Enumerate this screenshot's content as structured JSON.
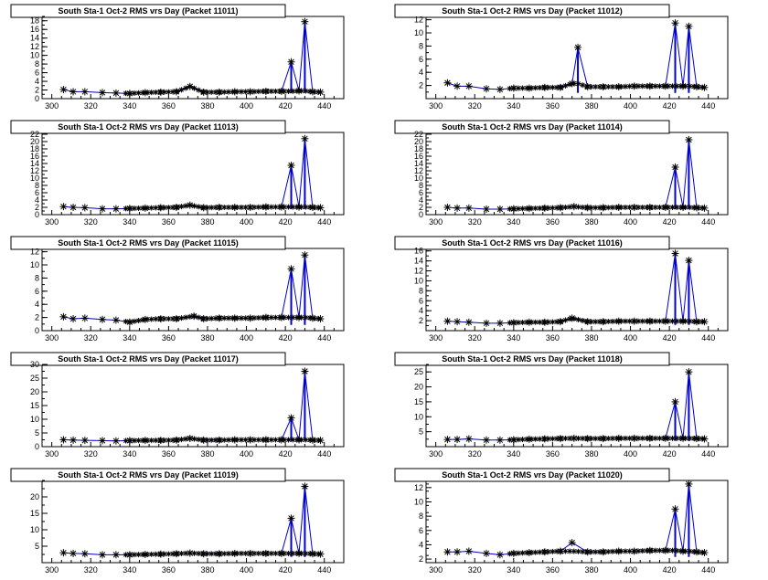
{
  "panels": [
    {
      "title": "South Sta-1 Oct-2 RMS vrs Day (Packet 11011)",
      "chart_data": {
        "type": "scatter",
        "xlim": [
          295,
          450
        ],
        "ylim": [
          0,
          19
        ],
        "xticks": [
          300,
          320,
          340,
          360,
          380,
          400,
          420,
          440
        ],
        "yticks": [
          0,
          2,
          4,
          6,
          8,
          10,
          12,
          14,
          16,
          18
        ],
        "x": [
          306,
          311,
          317,
          326,
          333,
          340,
          348,
          356,
          364,
          371,
          378,
          386,
          394,
          402,
          410,
          418,
          423,
          427,
          430,
          434,
          438
        ],
        "y": [
          2.1,
          1.6,
          1.6,
          1.4,
          1.3,
          1.2,
          1.4,
          1.5,
          1.6,
          2.8,
          1.5,
          1.5,
          1.6,
          1.6,
          1.7,
          1.7,
          8.5,
          1.8,
          17.8,
          1.6,
          1.5
        ],
        "peak_series": {
          "x": [
            423,
            430
          ],
          "y": [
            8.5,
            17.8
          ]
        }
      }
    },
    {
      "title": "South Sta-1 Oct-2 RMS vrs Day (Packet 11012)",
      "chart_data": {
        "type": "scatter",
        "xlim": [
          295,
          450
        ],
        "ylim": [
          0,
          12.5
        ],
        "xticks": [
          300,
          320,
          340,
          360,
          380,
          400,
          420,
          440
        ],
        "yticks": [
          2,
          4,
          6,
          8,
          10,
          12
        ],
        "x": [
          306,
          311,
          317,
          326,
          333,
          340,
          348,
          356,
          364,
          370,
          373,
          378,
          386,
          394,
          402,
          410,
          418,
          423,
          427,
          430,
          434,
          438
        ],
        "y": [
          2.4,
          1.9,
          1.9,
          1.5,
          1.4,
          1.6,
          1.6,
          1.7,
          1.7,
          2.3,
          7.8,
          1.8,
          1.8,
          1.8,
          1.9,
          1.9,
          1.9,
          11.5,
          1.9,
          11.0,
          1.8,
          1.7
        ],
        "peak_series": {
          "x": [
            373,
            423,
            430
          ],
          "y": [
            7.8,
            11.5,
            11.0
          ]
        }
      }
    },
    {
      "title": "South Sta-1 Oct-2 RMS vrs Day (Packet 11013)",
      "chart_data": {
        "type": "scatter",
        "xlim": [
          295,
          450
        ],
        "ylim": [
          0,
          22.5
        ],
        "xticks": [
          300,
          320,
          340,
          360,
          380,
          400,
          420,
          440
        ],
        "yticks": [
          0,
          2,
          4,
          6,
          8,
          10,
          12,
          14,
          16,
          18,
          20,
          22
        ],
        "x": [
          306,
          311,
          317,
          326,
          333,
          340,
          348,
          356,
          364,
          371,
          378,
          386,
          394,
          402,
          410,
          418,
          423,
          427,
          430,
          434,
          438
        ],
        "y": [
          2.2,
          2.0,
          1.9,
          1.6,
          1.6,
          1.7,
          1.8,
          1.9,
          2.0,
          2.6,
          1.9,
          2.0,
          2.0,
          2.0,
          2.1,
          2.1,
          13.5,
          2.1,
          20.8,
          2.0,
          1.9
        ],
        "peak_series": {
          "x": [
            423,
            430
          ],
          "y": [
            13.5,
            20.8
          ]
        }
      }
    },
    {
      "title": "South Sta-1 Oct-2 RMS vrs Day (Packet 11014)",
      "chart_data": {
        "type": "scatter",
        "xlim": [
          295,
          450
        ],
        "ylim": [
          0,
          22.5
        ],
        "xticks": [
          300,
          320,
          340,
          360,
          380,
          400,
          420,
          440
        ],
        "yticks": [
          0,
          2,
          4,
          6,
          8,
          10,
          12,
          14,
          16,
          18,
          20,
          22
        ],
        "x": [
          306,
          311,
          317,
          326,
          333,
          340,
          348,
          356,
          364,
          371,
          378,
          386,
          394,
          402,
          410,
          418,
          423,
          427,
          430,
          434,
          438
        ],
        "y": [
          2.0,
          1.8,
          1.8,
          1.5,
          1.5,
          1.6,
          1.7,
          1.8,
          1.9,
          2.2,
          1.9,
          1.9,
          2.0,
          2.0,
          2.0,
          2.0,
          13.0,
          2.0,
          20.5,
          1.9,
          1.8
        ],
        "peak_series": {
          "x": [
            423,
            430
          ],
          "y": [
            13.0,
            20.5
          ]
        }
      }
    },
    {
      "title": "South Sta-1 Oct-2 RMS vrs Day (Packet 11015)",
      "chart_data": {
        "type": "scatter",
        "xlim": [
          295,
          450
        ],
        "ylim": [
          0,
          12.5
        ],
        "xticks": [
          300,
          320,
          340,
          360,
          380,
          400,
          420,
          440
        ],
        "yticks": [
          0,
          2,
          4,
          6,
          8,
          10,
          12
        ],
        "x": [
          306,
          311,
          317,
          326,
          333,
          340,
          348,
          356,
          364,
          373,
          378,
          386,
          394,
          402,
          410,
          418,
          423,
          427,
          430,
          434,
          438
        ],
        "y": [
          2.1,
          1.8,
          1.9,
          1.7,
          1.6,
          1.3,
          1.7,
          1.8,
          1.8,
          2.2,
          1.8,
          1.9,
          1.9,
          1.9,
          2.0,
          2.0,
          9.4,
          2.0,
          11.5,
          1.9,
          1.8
        ],
        "peak_series": {
          "x": [
            423,
            430
          ],
          "y": [
            9.4,
            11.5
          ]
        }
      }
    },
    {
      "title": "South Sta-1 Oct-2 RMS vrs Day (Packet 11016)",
      "chart_data": {
        "type": "scatter",
        "xlim": [
          295,
          450
        ],
        "ylim": [
          0,
          16.5
        ],
        "xticks": [
          300,
          320,
          340,
          360,
          380,
          400,
          420,
          440
        ],
        "yticks": [
          2,
          4,
          6,
          8,
          10,
          12,
          14,
          16
        ],
        "x": [
          306,
          311,
          317,
          326,
          333,
          340,
          348,
          356,
          364,
          370,
          378,
          386,
          394,
          402,
          410,
          418,
          423,
          427,
          430,
          434,
          438
        ],
        "y": [
          1.9,
          1.8,
          1.7,
          1.5,
          1.5,
          1.6,
          1.7,
          1.7,
          1.8,
          2.5,
          1.8,
          1.8,
          1.9,
          1.9,
          1.9,
          1.9,
          15.5,
          1.9,
          14.1,
          1.8,
          1.8
        ],
        "peak_series": {
          "x": [
            423,
            430
          ],
          "y": [
            15.5,
            14.1
          ]
        }
      }
    },
    {
      "title": "South Sta-1 Oct-2 RMS vrs Day (Packet 11017)",
      "chart_data": {
        "type": "scatter",
        "xlim": [
          295,
          450
        ],
        "ylim": [
          0,
          30
        ],
        "xticks": [
          300,
          320,
          340,
          360,
          380,
          400,
          420,
          440
        ],
        "yticks": [
          0,
          5,
          10,
          15,
          20,
          25,
          30
        ],
        "x": [
          306,
          311,
          317,
          326,
          333,
          340,
          348,
          356,
          364,
          371,
          378,
          386,
          394,
          402,
          410,
          418,
          423,
          427,
          430,
          434,
          438
        ],
        "y": [
          2.5,
          2.4,
          2.3,
          2.2,
          2.1,
          2.2,
          2.3,
          2.3,
          2.4,
          3.0,
          2.4,
          2.4,
          2.5,
          2.5,
          2.5,
          2.5,
          10.5,
          2.5,
          27.5,
          2.4,
          2.3
        ],
        "peak_series": {
          "x": [
            423,
            430
          ],
          "y": [
            10.5,
            27.5
          ]
        }
      }
    },
    {
      "title": "South Sta-1 Oct-2 RMS vrs Day (Packet 11018)",
      "chart_data": {
        "type": "scatter",
        "xlim": [
          295,
          450
        ],
        "ylim": [
          0,
          27.5
        ],
        "xticks": [
          300,
          320,
          340,
          360,
          380,
          400,
          420,
          440
        ],
        "yticks": [
          5,
          10,
          15,
          20,
          25
        ],
        "x": [
          306,
          311,
          317,
          326,
          333,
          340,
          348,
          356,
          364,
          371,
          378,
          386,
          394,
          402,
          410,
          418,
          423,
          427,
          430,
          434,
          438
        ],
        "y": [
          2.4,
          2.4,
          2.6,
          2.2,
          2.2,
          2.3,
          2.5,
          2.6,
          2.7,
          2.8,
          2.7,
          2.7,
          2.8,
          2.8,
          2.8,
          2.8,
          15.0,
          2.8,
          25.0,
          2.7,
          2.6
        ],
        "peak_series": {
          "x": [
            423,
            430
          ],
          "y": [
            15.0,
            25.0
          ]
        }
      }
    },
    {
      "title": "South Sta-1 Oct-2 RMS vrs Day (Packet 11019)",
      "chart_data": {
        "type": "scatter",
        "xlim": [
          295,
          450
        ],
        "ylim": [
          0,
          25
        ],
        "xticks": [
          300,
          320,
          340,
          360,
          380,
          400,
          420,
          440
        ],
        "yticks": [
          5,
          10,
          15,
          20
        ],
        "x": [
          306,
          311,
          317,
          326,
          333,
          340,
          348,
          356,
          364,
          371,
          378,
          386,
          394,
          402,
          410,
          418,
          423,
          427,
          430,
          434,
          438
        ],
        "y": [
          3.0,
          2.8,
          2.7,
          2.4,
          2.4,
          2.4,
          2.5,
          2.6,
          2.7,
          2.9,
          2.7,
          2.7,
          2.8,
          2.8,
          2.8,
          2.8,
          13.5,
          2.8,
          23.2,
          2.7,
          2.6
        ],
        "peak_series": {
          "x": [
            423,
            430
          ],
          "y": [
            13.5,
            23.2
          ]
        }
      }
    },
    {
      "title": "South Sta-1 Oct-2 RMS vrs Day (Packet 11020)",
      "chart_data": {
        "type": "scatter",
        "xlim": [
          295,
          450
        ],
        "ylim": [
          1.5,
          13
        ],
        "xticks": [
          300,
          320,
          340,
          360,
          380,
          400,
          420,
          440
        ],
        "yticks": [
          2,
          4,
          6,
          8,
          10,
          12
        ],
        "x": [
          306,
          311,
          317,
          326,
          333,
          340,
          348,
          356,
          364,
          370,
          378,
          386,
          394,
          402,
          410,
          418,
          423,
          427,
          430,
          434,
          438
        ],
        "y": [
          3.0,
          3.0,
          3.1,
          2.8,
          2.6,
          2.8,
          2.9,
          3.0,
          3.1,
          4.3,
          3.0,
          3.0,
          3.1,
          3.1,
          3.2,
          3.2,
          9.0,
          3.1,
          12.5,
          3.0,
          2.9
        ],
        "peak_series": {
          "x": [
            423,
            430
          ],
          "y": [
            9.0,
            12.5
          ]
        }
      }
    }
  ]
}
